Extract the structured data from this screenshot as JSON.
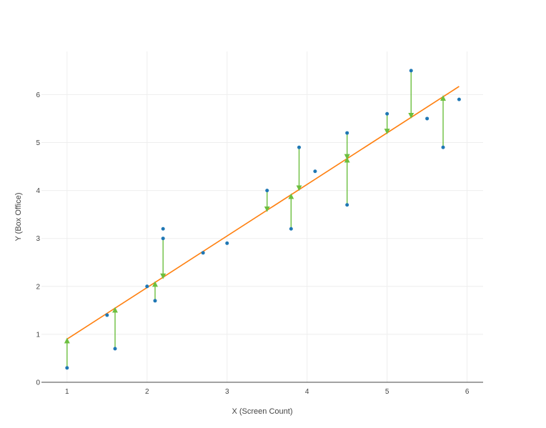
{
  "chart_data": {
    "type": "scatter",
    "title": "",
    "xlabel": "X (Screen Count)",
    "ylabel": "Y (Box Office)",
    "xlim": [
      0.68,
      6.2
    ],
    "ylim": [
      0,
      6.9
    ],
    "xticks": [
      1,
      2,
      3,
      4,
      5,
      6
    ],
    "yticks": [
      0,
      1,
      2,
      3,
      4,
      5,
      6
    ],
    "grid": true,
    "points": [
      {
        "x": 1.0,
        "y": 0.3
      },
      {
        "x": 1.5,
        "y": 1.4
      },
      {
        "x": 1.6,
        "y": 0.7
      },
      {
        "x": 2.0,
        "y": 2.0
      },
      {
        "x": 2.1,
        "y": 1.7
      },
      {
        "x": 2.2,
        "y": 3.2
      },
      {
        "x": 2.2,
        "y": 3.0
      },
      {
        "x": 2.7,
        "y": 2.7
      },
      {
        "x": 3.0,
        "y": 2.9
      },
      {
        "x": 3.5,
        "y": 4.0
      },
      {
        "x": 3.8,
        "y": 3.2
      },
      {
        "x": 3.9,
        "y": 4.9
      },
      {
        "x": 4.1,
        "y": 4.4
      },
      {
        "x": 4.5,
        "y": 5.2
      },
      {
        "x": 4.5,
        "y": 3.7
      },
      {
        "x": 5.0,
        "y": 5.6
      },
      {
        "x": 5.3,
        "y": 6.5
      },
      {
        "x": 5.5,
        "y": 5.5
      },
      {
        "x": 5.7,
        "y": 4.9
      },
      {
        "x": 5.9,
        "y": 5.9
      }
    ],
    "regression_line": {
      "x": [
        1.0,
        5.9
      ],
      "y": [
        0.9,
        6.17
      ]
    },
    "residual_arrows": [
      {
        "x": 1.0,
        "from": 0.3,
        "to": 0.9
      },
      {
        "x": 1.6,
        "from": 0.7,
        "to": 1.54
      },
      {
        "x": 2.1,
        "from": 1.7,
        "to": 2.08
      },
      {
        "x": 2.2,
        "from": 3.0,
        "to": 2.18
      },
      {
        "x": 3.5,
        "from": 4.0,
        "to": 3.58
      },
      {
        "x": 3.8,
        "from": 3.2,
        "to": 3.91
      },
      {
        "x": 3.9,
        "from": 4.9,
        "to": 4.02
      },
      {
        "x": 4.5,
        "from": 5.2,
        "to": 4.67
      },
      {
        "x": 4.5,
        "from": 3.7,
        "to": 4.67
      },
      {
        "x": 5.0,
        "from": 5.6,
        "to": 5.2
      },
      {
        "x": 5.3,
        "from": 6.5,
        "to": 5.53
      },
      {
        "x": 5.7,
        "from": 4.9,
        "to": 5.96
      }
    ],
    "colors": {
      "points": "#1f77b4",
      "regression_line": "#ff7f0e",
      "residual_arrows": "#6cbf3f",
      "grid": "#eeeeee",
      "axis": "#444444"
    }
  }
}
